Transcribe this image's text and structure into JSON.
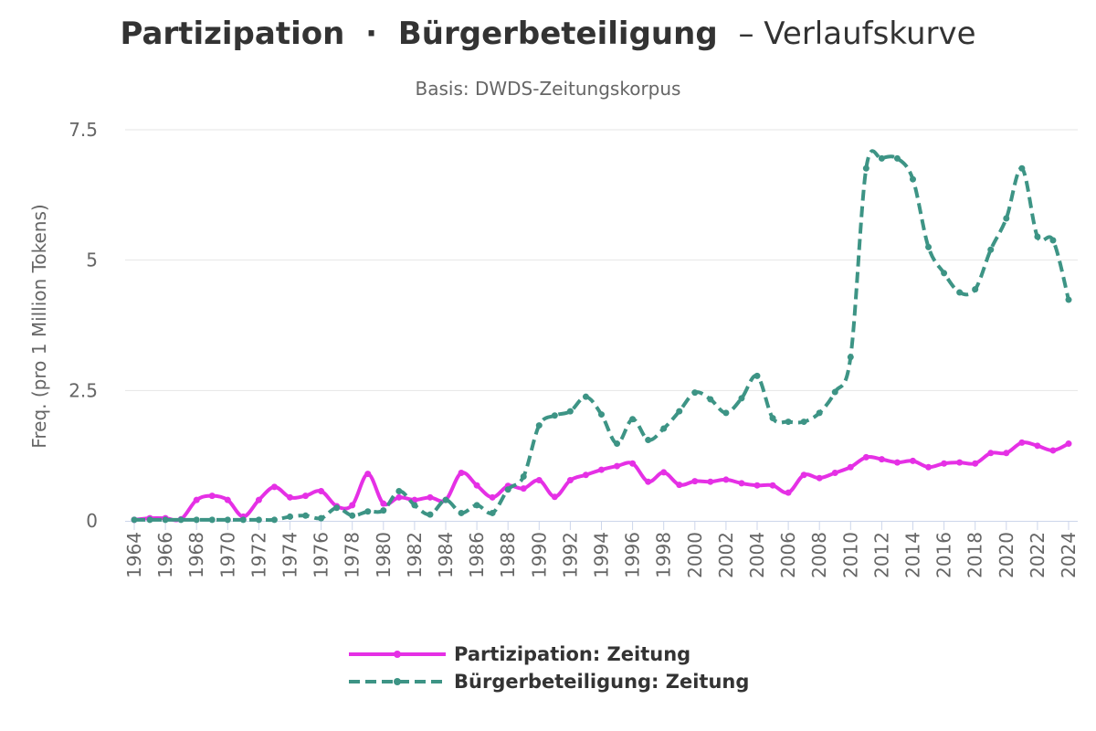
{
  "chart_data": {
    "type": "line",
    "title_part1": "Partizipation",
    "title_sep": "·",
    "title_part2": "Bürgerbeteiligung",
    "title_suffix": "– Verlaufskurve",
    "subtitle": "Basis: DWDS-Zeitungskorpus",
    "ylabel": "Freq. (pro 1 Million Tokens)",
    "xlabel": "",
    "ylim": [
      0,
      7.5
    ],
    "yticks": [
      {
        "value": 0,
        "label": "0"
      },
      {
        "value": 2.5,
        "label": "2.5"
      },
      {
        "value": 5,
        "label": "5"
      },
      {
        "value": 7.5,
        "label": "7.5"
      }
    ],
    "xlim": [
      1964,
      2024
    ],
    "xtick_labels": [
      "1964",
      "1966",
      "1968",
      "1970",
      "1972",
      "1974",
      "1976",
      "1978",
      "1980",
      "1982",
      "1984",
      "1986",
      "1988",
      "1990",
      "1992",
      "1994",
      "1996",
      "1998",
      "2000",
      "2002",
      "2004",
      "2006",
      "2008",
      "2010",
      "2012",
      "2014",
      "2016",
      "2018",
      "2020",
      "2022",
      "2024"
    ],
    "grid": true,
    "legend_position": "bottom-center",
    "x": [
      1964,
      1965,
      1966,
      1967,
      1968,
      1969,
      1970,
      1971,
      1972,
      1973,
      1974,
      1975,
      1976,
      1977,
      1978,
      1979,
      1980,
      1981,
      1982,
      1983,
      1984,
      1985,
      1986,
      1987,
      1988,
      1989,
      1990,
      1991,
      1992,
      1993,
      1994,
      1995,
      1996,
      1997,
      1998,
      1999,
      2000,
      2001,
      2002,
      2003,
      2004,
      2005,
      2006,
      2007,
      2008,
      2009,
      2010,
      2011,
      2012,
      2013,
      2014,
      2015,
      2016,
      2017,
      2018,
      2019,
      2020,
      2021,
      2022,
      2023,
      2024
    ],
    "series": [
      {
        "name": "Partizipation: Zeitung",
        "color": "#e530e5",
        "dashed": false,
        "values": [
          0.02,
          0.05,
          0.05,
          0.03,
          0.4,
          0.48,
          0.4,
          0.08,
          0.4,
          0.65,
          0.45,
          0.48,
          0.57,
          0.28,
          0.3,
          0.9,
          0.33,
          0.45,
          0.4,
          0.45,
          0.4,
          0.92,
          0.68,
          0.45,
          0.67,
          0.62,
          0.78,
          0.46,
          0.78,
          0.88,
          0.98,
          1.05,
          1.1,
          0.75,
          0.93,
          0.69,
          0.76,
          0.75,
          0.79,
          0.72,
          0.68,
          0.68,
          0.54,
          0.88,
          0.82,
          0.92,
          1.03,
          1.22,
          1.18,
          1.12,
          1.15,
          1.03,
          1.1,
          1.12,
          1.1,
          1.3,
          1.3,
          1.5,
          1.44,
          1.35,
          1.48
        ]
      },
      {
        "name": "Bürgerbeteiligung: Zeitung",
        "color": "#3d9485",
        "dashed": true,
        "values": [
          0.02,
          0.02,
          0.02,
          0.02,
          0.02,
          0.02,
          0.02,
          0.02,
          0.02,
          0.02,
          0.08,
          0.1,
          0.05,
          0.25,
          0.1,
          0.18,
          0.2,
          0.57,
          0.3,
          0.12,
          0.4,
          0.15,
          0.3,
          0.15,
          0.6,
          0.85,
          1.83,
          2.02,
          2.1,
          2.38,
          2.04,
          1.48,
          1.95,
          1.55,
          1.77,
          2.1,
          2.46,
          2.33,
          2.07,
          2.35,
          2.78,
          1.97,
          1.9,
          1.9,
          2.07,
          2.47,
          3.14,
          6.76,
          6.95,
          6.95,
          6.55,
          5.25,
          4.75,
          4.38,
          4.44,
          5.2,
          5.8,
          6.76,
          5.45,
          5.38,
          4.24
        ]
      }
    ]
  }
}
